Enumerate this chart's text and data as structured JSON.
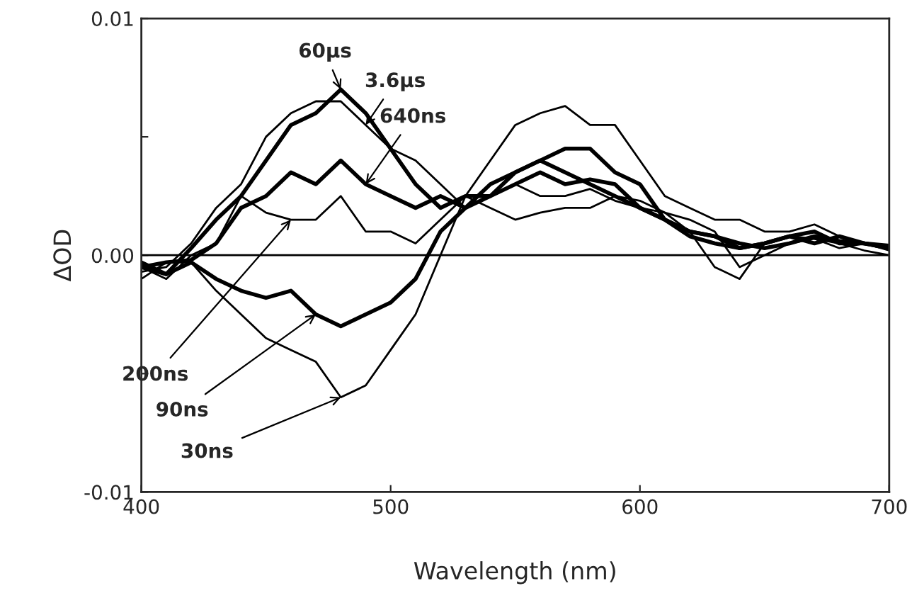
{
  "chart_data": {
    "type": "line",
    "xlabel": "Wavelength (nm)",
    "ylabel": "ΔOD",
    "x": [
      400,
      410,
      420,
      430,
      440,
      450,
      460,
      470,
      480,
      490,
      500,
      510,
      520,
      530,
      540,
      550,
      560,
      570,
      580,
      590,
      600,
      610,
      620,
      630,
      640,
      650,
      660,
      670,
      680,
      690,
      700
    ],
    "series": [
      {
        "color": "#000000",
        "values": [
          -0.0005,
          -0.0008,
          0.0003,
          0.0015,
          0.0025,
          0.004,
          0.0055,
          0.006,
          0.007,
          0.006,
          0.0045,
          0.003,
          0.002,
          0.0025,
          0.0025,
          0.003,
          0.0035,
          0.003,
          0.0032,
          0.003,
          0.002,
          0.0015,
          0.001,
          0.0008,
          0.0005,
          0.0003,
          0.0005,
          0.0008,
          0.0006,
          0.0005,
          0.0003
        ]
      },
      {
        "color": "#000000",
        "values": [
          -0.0007,
          -0.0005,
          0.0005,
          0.002,
          0.003,
          0.005,
          0.006,
          0.0065,
          0.0065,
          0.0055,
          0.0045,
          0.004,
          0.003,
          0.002,
          0.0025,
          0.003,
          0.0025,
          0.0025,
          0.0028,
          0.0023,
          0.002,
          0.0018,
          0.0015,
          0.001,
          -0.0005,
          0.0,
          0.0005,
          0.0007,
          0.0005,
          0.0002,
          0.0
        ]
      },
      {
        "color": "#000000",
        "values": [
          -0.0005,
          -0.0003,
          -0.0002,
          0.0005,
          0.002,
          0.0025,
          0.0035,
          0.003,
          0.004,
          0.003,
          0.0025,
          0.002,
          0.0025,
          0.002,
          0.003,
          0.0035,
          0.004,
          0.0045,
          0.0045,
          0.0035,
          0.003,
          0.0015,
          0.001,
          0.0008,
          0.0003,
          0.0005,
          0.0008,
          0.001,
          0.0005,
          0.0005,
          0.0003
        ]
      },
      {
        "color": "#000000",
        "values": [
          -0.0005,
          -0.001,
          0.0,
          0.0005,
          0.0025,
          0.0018,
          0.0015,
          0.0015,
          0.0025,
          0.001,
          0.001,
          0.0005,
          0.0015,
          0.0025,
          0.002,
          0.0015,
          0.0018,
          0.002,
          0.002,
          0.0025,
          0.0023,
          0.0018,
          0.001,
          -0.0005,
          -0.001,
          0.0005,
          0.0008,
          0.0007,
          0.0003,
          0.0005,
          0.0002
        ]
      },
      {
        "color": "#000000",
        "values": [
          -0.0003,
          -0.0008,
          -0.0003,
          -0.001,
          -0.0015,
          -0.0018,
          -0.0015,
          -0.0025,
          -0.003,
          -0.0025,
          -0.002,
          -0.001,
          0.001,
          0.002,
          0.0025,
          0.0035,
          0.004,
          0.0035,
          0.003,
          0.0025,
          0.002,
          0.0015,
          0.0008,
          0.0005,
          0.0003,
          0.0005,
          0.0008,
          0.0005,
          0.0008,
          0.0005,
          0.0004
        ]
      },
      {
        "color": "#000000",
        "values": [
          -0.001,
          -0.0003,
          -0.0003,
          -0.0015,
          -0.0025,
          -0.0035,
          -0.004,
          -0.0045,
          -0.006,
          -0.0055,
          -0.004,
          -0.0025,
          0.0,
          0.0025,
          0.004,
          0.0055,
          0.006,
          0.0063,
          0.0055,
          0.0055,
          0.004,
          0.0025,
          0.002,
          0.0015,
          0.0015,
          0.001,
          0.001,
          0.0013,
          0.0008,
          0.0005,
          0.0003
        ]
      }
    ],
    "xlim": [
      400,
      700
    ],
    "xticks": [
      400,
      500,
      600,
      700
    ],
    "ylim": [
      -0.01,
      0.01
    ],
    "yticks": [
      {
        "value": -0.01,
        "label": "-0.01"
      },
      {
        "value": -0.005,
        "label": null
      },
      {
        "value": 0,
        "label": "0.00"
      },
      {
        "value": 0.005,
        "label": null
      },
      {
        "value": 0.01,
        "label": "0.01"
      }
    ],
    "ref_lines": [
      {
        "axis": "y",
        "value": 0,
        "color": "#000000"
      }
    ],
    "annotations": [
      {
        "text": "60μs",
        "x": 480,
        "y": 0.007
      },
      {
        "text": "3.6μs",
        "x": 490,
        "y": 0.0055
      },
      {
        "text": "640ns",
        "x": 490,
        "y": 0.003
      },
      {
        "text": "200ns",
        "x": 460,
        "y": 0.0015
      },
      {
        "text": "90ns",
        "x": 470,
        "y": -0.0025
      },
      {
        "text": "30ns",
        "x": 480,
        "y": -0.006
      }
    ],
    "grid": false,
    "legend": false,
    "marker": "none",
    "line_style": "solid"
  }
}
